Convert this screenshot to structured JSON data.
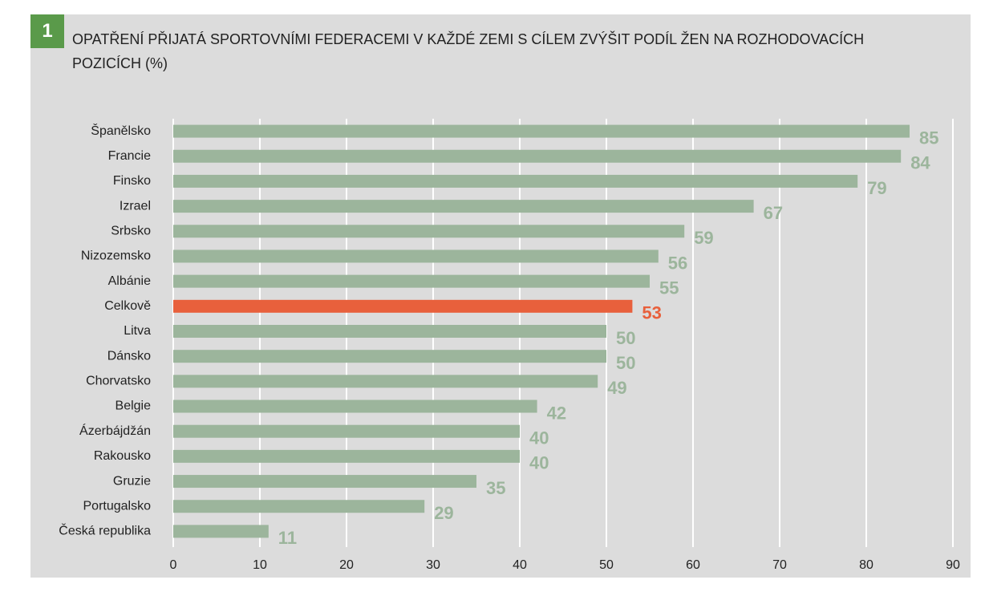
{
  "chart_data": {
    "type": "barh",
    "badge": "1",
    "title": "OPATŘENÍ PŘIJATÁ SPORTOVNÍMI FEDERACEMI V KAŽDÉ ZEMI S CÍLEM ZVÝŠIT PODÍL ŽEN NA ROZHODOVACÍCH POZICÍCH (%)",
    "categories": [
      "Španělsko",
      "Francie",
      "Finsko",
      "Izrael",
      "Srbsko",
      "Nizozemsko",
      "Albánie",
      "Celkově",
      "Litva",
      "Dánsko",
      "Chorvatsko",
      "Belgie",
      "Ázerbájdžán",
      "Rakousko",
      "Gruzie",
      "Portugalsko",
      "Česká republika"
    ],
    "values": [
      85,
      84,
      79,
      67,
      59,
      56,
      55,
      53,
      50,
      50,
      49,
      42,
      40,
      40,
      35,
      29,
      11
    ],
    "colors": [
      "#9cb59c",
      "#9cb59c",
      "#9cb59c",
      "#9cb59c",
      "#9cb59c",
      "#9cb59c",
      "#9cb59c",
      "#e8603c",
      "#9cb59c",
      "#9cb59c",
      "#9cb59c",
      "#9cb59c",
      "#9cb59c",
      "#9cb59c",
      "#9cb59c",
      "#9cb59c",
      "#9cb59c"
    ],
    "xlim": [
      0,
      90
    ],
    "xticks": [
      0,
      10,
      20,
      30,
      40,
      50,
      60,
      70,
      80,
      90
    ],
    "grid": true
  }
}
